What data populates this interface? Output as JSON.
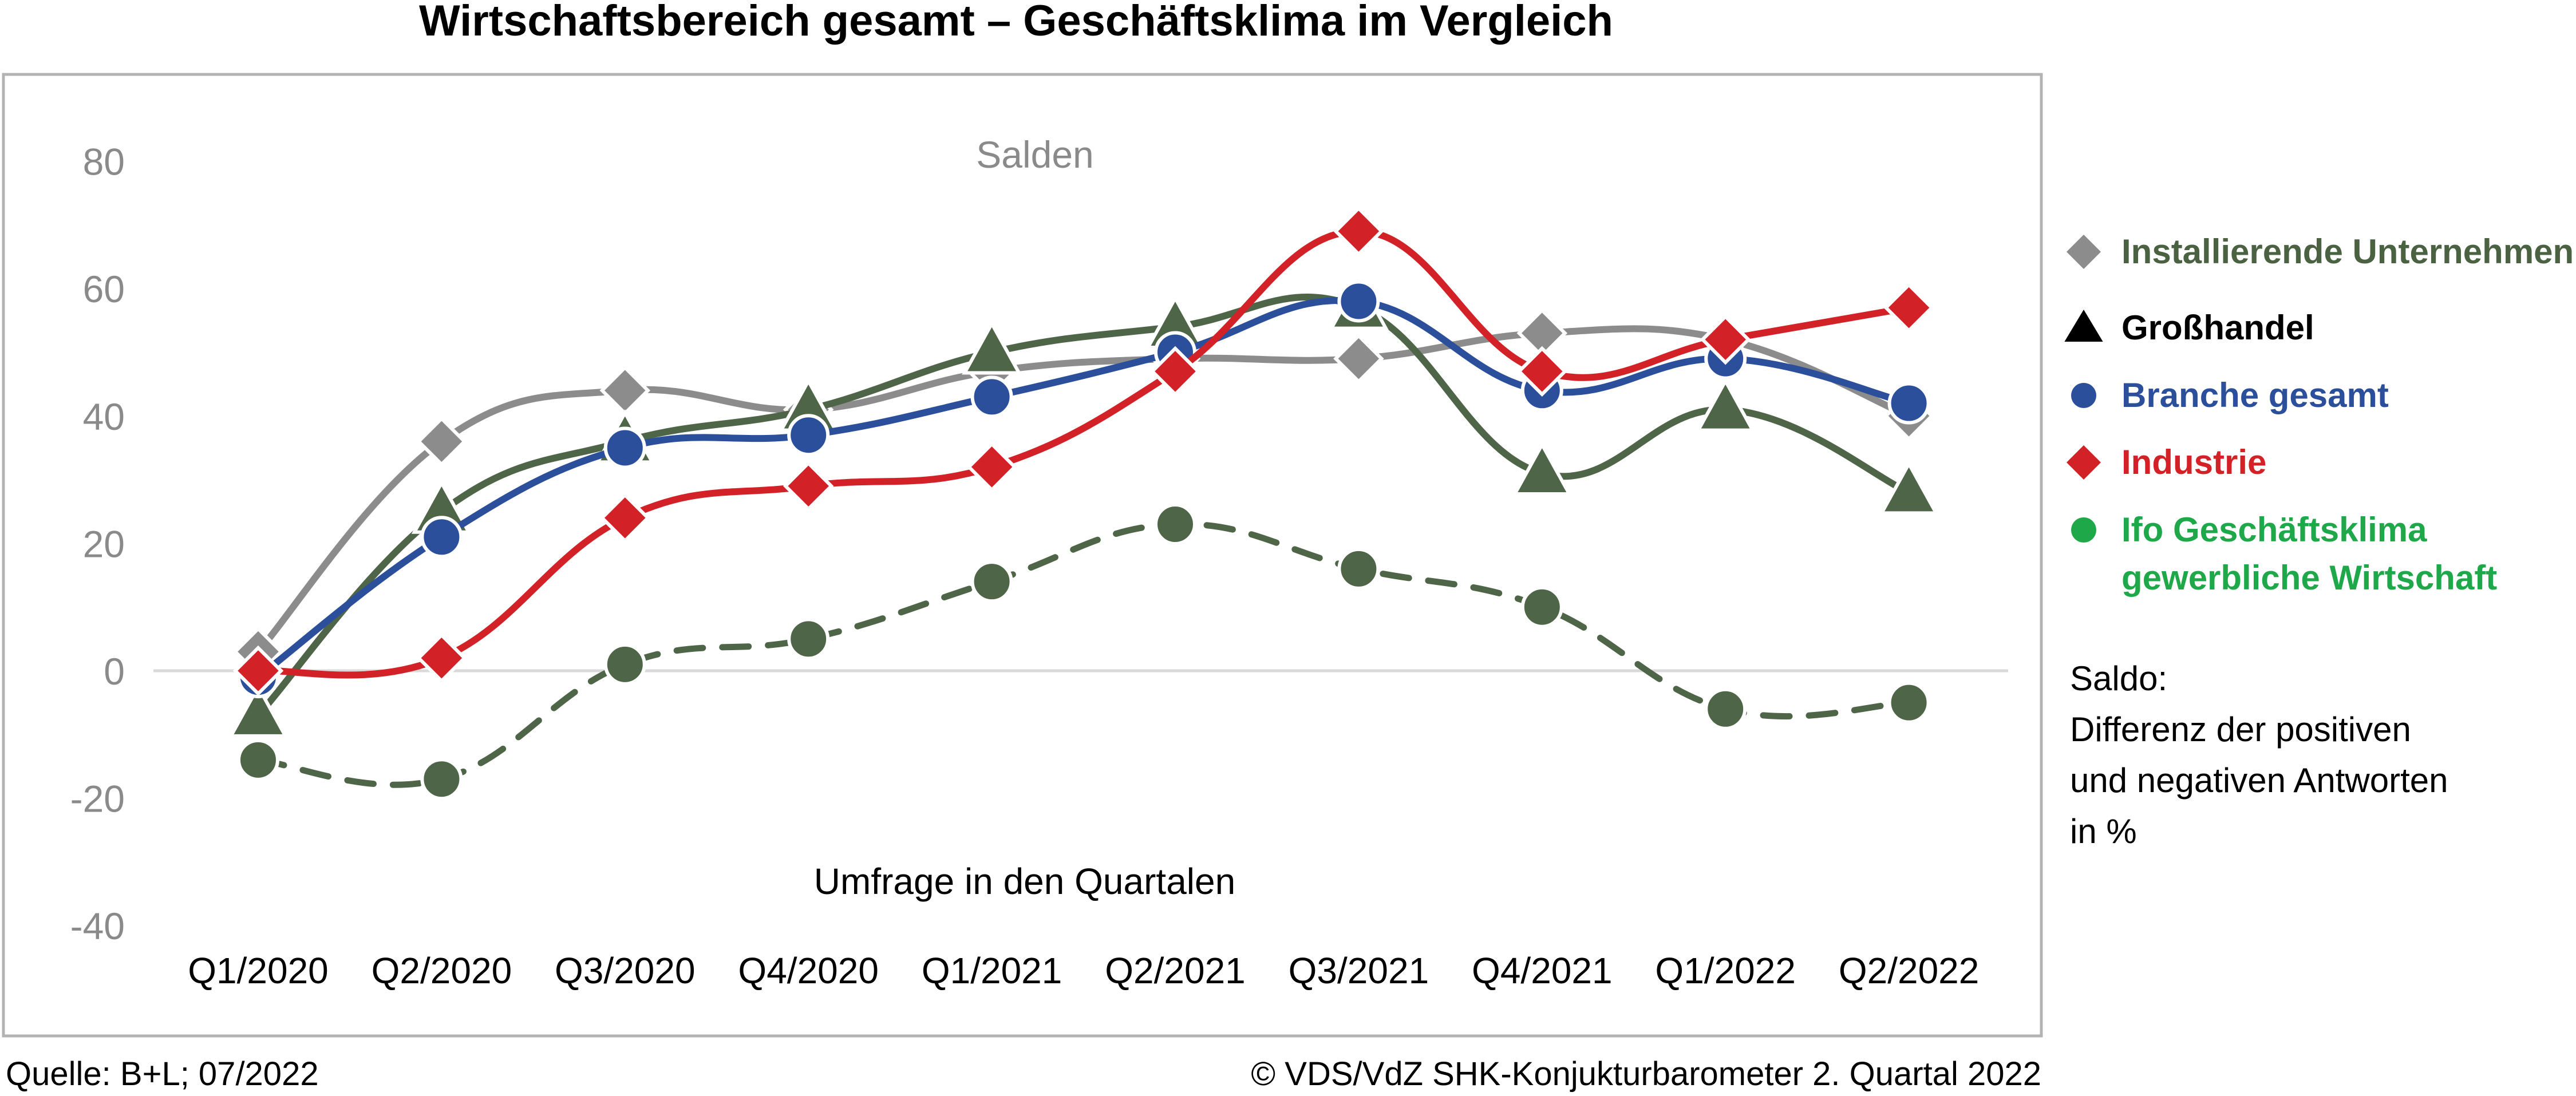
{
  "chart_data": {
    "type": "line",
    "title": "Wirtschaftsbereich gesamt – Geschäftsklima im Vergleich",
    "subtitle": "Salden",
    "xlabel": "Umfrage in den Quartalen",
    "ylabel": "",
    "ylim": [
      -40,
      80
    ],
    "yticks": [
      80,
      60,
      40,
      20,
      0,
      -20,
      -40
    ],
    "grid": false,
    "legend_position": "right",
    "categories": [
      "Q1/2020",
      "Q2/2020",
      "Q3/2020",
      "Q4/2020",
      "Q1/2021",
      "Q2/2021",
      "Q3/2021",
      "Q4/2021",
      "Q1/2022",
      "Q2/2022"
    ],
    "series": [
      {
        "name": "Installierende Unternehmen",
        "marker": "diamond",
        "color": "#8c8c8c",
        "label_color": "#4a6142",
        "dashed": false,
        "values": [
          3,
          36,
          44,
          41,
          47,
          49,
          49,
          53,
          52,
          40
        ]
      },
      {
        "name": "Großhandel",
        "marker": "triangle",
        "color": "#4f6548",
        "label_color": "#000000",
        "dashed": false,
        "values": [
          -7,
          25,
          36,
          41,
          50,
          54,
          57,
          31,
          41,
          28
        ]
      },
      {
        "name": "Branche gesamt",
        "marker": "circle",
        "color": "#2b4f9b",
        "label_color": "#2b4f9b",
        "dashed": false,
        "values": [
          -1,
          21,
          35,
          37,
          43,
          50,
          58,
          44,
          49,
          42
        ]
      },
      {
        "name": "Industrie",
        "marker": "diamond",
        "color": "#d32128",
        "label_color": "#d32128",
        "dashed": false,
        "values": [
          0,
          2,
          24,
          29,
          32,
          47,
          69,
          47,
          52,
          57
        ]
      },
      {
        "name": "Ifo Geschäftsklima gewerbliche Wirtschaft",
        "name_lines": [
          "Ifo Geschäftsklima",
          "gewerbliche Wirtschaft"
        ],
        "marker": "circle",
        "color": "#4f6548",
        "label_color": "#1fa84a",
        "legend_marker_color": "#1fa84a",
        "dashed": true,
        "values": [
          -14,
          -17,
          1,
          5,
          14,
          23,
          16,
          10,
          -6,
          -5
        ]
      }
    ]
  },
  "note_lines": [
    "Saldo:",
    "Differenz der positiven",
    "und negativen Antworten",
    "in %"
  ],
  "footer": {
    "source": "Quelle: B+L; 07/2022",
    "copyright": "© VDS/VdZ SHK-Konjukturbarometer 2. Quartal 2022"
  }
}
